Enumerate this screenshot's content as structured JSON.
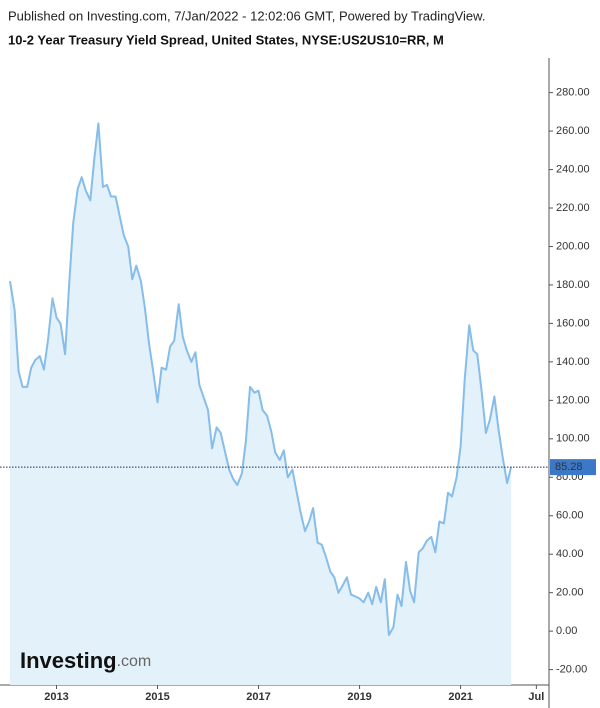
{
  "header": "Published on Investing.com, 7/Jan/2022 - 12:02:06 GMT, Powered by TradingView.",
  "watermark": {
    "brand": "Investing",
    "suffix": ".com"
  },
  "chart_data": {
    "type": "area",
    "title": "10-2 Year Treasury Yield Spread, United States, NYSE:US2US10=RR, M",
    "color": "#86bdea",
    "fill": "#e2f1fa",
    "x": [
      2012.08,
      2012.17,
      2012.25,
      2012.33,
      2012.42,
      2012.5,
      2012.58,
      2012.67,
      2012.75,
      2012.83,
      2012.92,
      2013.0,
      2013.08,
      2013.17,
      2013.25,
      2013.33,
      2013.42,
      2013.5,
      2013.58,
      2013.67,
      2013.75,
      2013.83,
      2013.92,
      2014.0,
      2014.08,
      2014.17,
      2014.25,
      2014.33,
      2014.42,
      2014.5,
      2014.58,
      2014.67,
      2014.75,
      2014.83,
      2014.92,
      2015.0,
      2015.08,
      2015.17,
      2015.25,
      2015.33,
      2015.42,
      2015.5,
      2015.58,
      2015.67,
      2015.75,
      2015.83,
      2015.92,
      2016.0,
      2016.08,
      2016.17,
      2016.25,
      2016.33,
      2016.42,
      2016.5,
      2016.58,
      2016.67,
      2016.75,
      2016.83,
      2016.92,
      2017.0,
      2017.08,
      2017.17,
      2017.25,
      2017.33,
      2017.42,
      2017.5,
      2017.58,
      2017.67,
      2017.75,
      2017.83,
      2017.92,
      2018.0,
      2018.08,
      2018.17,
      2018.25,
      2018.33,
      2018.42,
      2018.5,
      2018.58,
      2018.67,
      2018.75,
      2018.83,
      2018.92,
      2019.0,
      2019.08,
      2019.17,
      2019.25,
      2019.33,
      2019.42,
      2019.5,
      2019.58,
      2019.67,
      2019.75,
      2019.83,
      2019.92,
      2020.0,
      2020.08,
      2020.17,
      2020.25,
      2020.33,
      2020.42,
      2020.5,
      2020.58,
      2020.67,
      2020.75,
      2020.83,
      2020.92,
      2021.0,
      2021.08,
      2021.17,
      2021.25,
      2021.33,
      2021.42,
      2021.5,
      2021.58,
      2021.67,
      2021.75,
      2021.83,
      2021.92,
      2022.0
    ],
    "values": [
      182,
      167,
      135,
      127,
      127,
      137,
      141,
      143,
      136,
      151,
      173,
      163,
      160,
      144,
      180,
      212,
      230,
      236,
      229,
      224,
      246,
      264,
      231,
      232,
      226,
      226,
      216,
      206,
      200,
      183,
      190,
      182,
      168,
      150,
      134,
      119,
      137,
      136,
      148,
      151,
      170,
      153,
      146,
      140,
      145,
      128,
      121,
      115,
      95,
      106,
      103,
      94,
      84,
      79,
      76,
      82,
      99,
      127,
      124,
      125,
      115,
      112,
      104,
      93,
      89,
      94,
      80,
      84,
      73,
      62,
      52,
      57,
      64,
      46,
      45,
      39,
      31,
      28,
      20,
      24,
      28,
      19,
      18,
      17,
      15,
      20,
      14,
      23,
      15,
      27,
      -2,
      2,
      19,
      13,
      36,
      21,
      15,
      41,
      43,
      47,
      49,
      41,
      57,
      56,
      72,
      70,
      80,
      96,
      130,
      159,
      146,
      144,
      124,
      103,
      110,
      122,
      105,
      91,
      77,
      85.28
    ],
    "xlim": [
      2012.04,
      2022.75
    ],
    "xticks": [
      {
        "value": 2013,
        "label": "2013"
      },
      {
        "value": 2015,
        "label": "2015"
      },
      {
        "value": 2017,
        "label": "2017"
      },
      {
        "value": 2019,
        "label": "2019"
      },
      {
        "value": 2021,
        "label": "2021"
      },
      {
        "value": 2022.5,
        "label": "Jul"
      }
    ],
    "ylim": [
      -28,
      298
    ],
    "yticks": [
      {
        "value": -20,
        "label": "-20.00"
      },
      {
        "value": 0,
        "label": "0.00"
      },
      {
        "value": 20,
        "label": "20.00"
      },
      {
        "value": 40,
        "label": "40.00"
      },
      {
        "value": 60,
        "label": "60.00"
      },
      {
        "value": 80,
        "label": "80.00"
      },
      {
        "value": 100,
        "label": "100.00"
      },
      {
        "value": 120,
        "label": "120.00"
      },
      {
        "value": 140,
        "label": "140.00"
      },
      {
        "value": 160,
        "label": "160.00"
      },
      {
        "value": 180,
        "label": "180.00"
      },
      {
        "value": 200,
        "label": "200.00"
      },
      {
        "value": 220,
        "label": "220.00"
      },
      {
        "value": 240,
        "label": "240.00"
      },
      {
        "value": 260,
        "label": "260.00"
      },
      {
        "value": 280,
        "label": "280.00"
      }
    ],
    "y_axis_side": "right",
    "last_value_color": "#3b78c8"
  }
}
